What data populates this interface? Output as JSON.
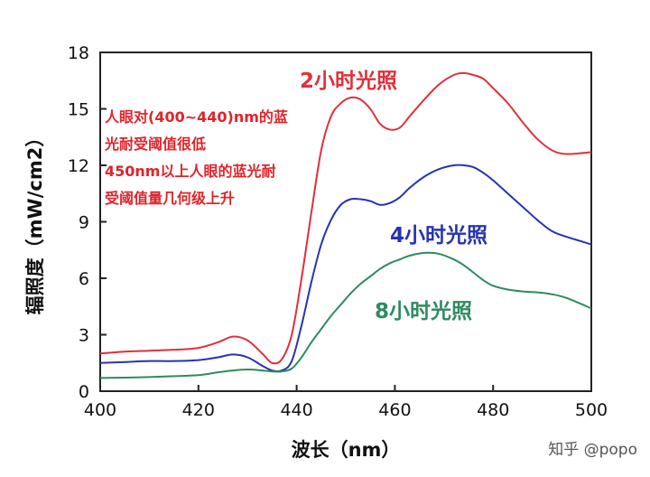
{
  "chart_data": {
    "type": "line",
    "xlabel": "波长（nm）",
    "ylabel": "辐照度（mW/cm2）",
    "xlim": [
      400,
      500
    ],
    "ylim": [
      0,
      18
    ],
    "xticks": [
      "400",
      "420",
      "440",
      "460",
      "480",
      "500"
    ],
    "yticks": [
      "0",
      "3",
      "6",
      "9",
      "12",
      "15",
      "18"
    ],
    "grid": false,
    "series": [
      {
        "name": "2小时光照",
        "color": "#e0303a",
        "x": [
          400,
          405,
          410,
          415,
          420,
          424,
          427,
          430,
          433,
          435,
          437,
          439,
          441,
          443,
          445,
          447,
          449,
          451,
          453,
          455,
          457,
          459,
          461,
          463,
          466,
          469,
          472,
          474,
          476,
          478,
          480,
          483,
          486,
          489,
          492,
          495,
          500
        ],
        "y": [
          2.0,
          2.1,
          2.15,
          2.2,
          2.3,
          2.6,
          2.9,
          2.7,
          2.0,
          1.5,
          1.7,
          3.0,
          6.0,
          9.5,
          12.8,
          14.6,
          15.3,
          15.6,
          15.5,
          15.0,
          14.2,
          13.9,
          14.0,
          14.6,
          15.5,
          16.3,
          16.8,
          16.9,
          16.8,
          16.6,
          16.1,
          15.3,
          14.3,
          13.4,
          12.8,
          12.6,
          12.7
        ]
      },
      {
        "name": "4小时光照",
        "color": "#2733b0",
        "x": [
          400,
          405,
          410,
          415,
          420,
          424,
          427,
          430,
          433,
          435,
          437,
          439,
          441,
          443,
          445,
          447,
          449,
          451,
          453,
          455,
          457,
          459,
          461,
          463,
          466,
          469,
          472,
          474,
          476,
          478,
          480,
          483,
          486,
          489,
          492,
          495,
          500
        ],
        "y": [
          1.5,
          1.55,
          1.6,
          1.6,
          1.65,
          1.8,
          1.95,
          1.8,
          1.35,
          1.1,
          1.1,
          1.6,
          3.5,
          5.8,
          7.8,
          9.1,
          9.9,
          10.2,
          10.2,
          10.1,
          9.9,
          10.0,
          10.3,
          10.8,
          11.4,
          11.8,
          12.0,
          12.0,
          11.9,
          11.6,
          11.2,
          10.5,
          9.8,
          9.1,
          8.5,
          8.2,
          7.8
        ]
      },
      {
        "name": "8小时光照",
        "color": "#2e8b5f",
        "x": [
          400,
          405,
          410,
          415,
          420,
          424,
          427,
          430,
          433,
          435,
          437,
          439,
          441,
          443,
          445,
          447,
          449,
          451,
          453,
          455,
          457,
          459,
          461,
          463,
          466,
          469,
          472,
          474,
          476,
          478,
          480,
          483,
          486,
          489,
          492,
          495,
          500
        ],
        "y": [
          0.7,
          0.72,
          0.75,
          0.8,
          0.85,
          1.0,
          1.1,
          1.15,
          1.1,
          1.05,
          1.05,
          1.2,
          1.8,
          2.6,
          3.3,
          4.0,
          4.6,
          5.2,
          5.7,
          6.1,
          6.5,
          6.8,
          7.0,
          7.2,
          7.35,
          7.3,
          7.0,
          6.7,
          6.3,
          5.9,
          5.6,
          5.4,
          5.3,
          5.25,
          5.15,
          4.95,
          4.4
        ]
      }
    ],
    "annotations": [
      "人眼对(400~440)nm的蓝",
      "光耐受阈值很低",
      "450nm以上人眼的蓝光耐",
      "受阈值量几何级上升"
    ],
    "series_labels": [
      "2小时光照",
      "4小时光照",
      "8小时光照"
    ]
  },
  "watermark": "知乎 @popo"
}
